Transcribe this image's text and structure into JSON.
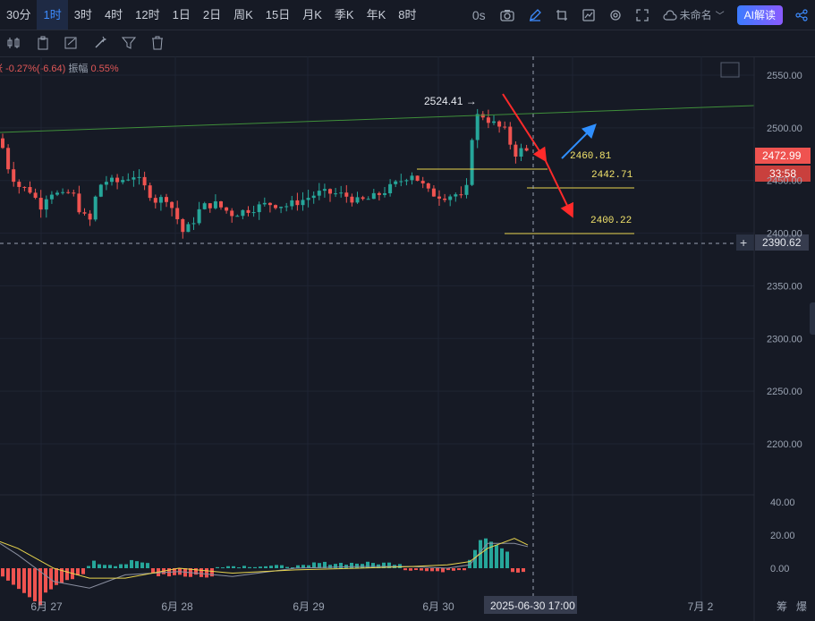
{
  "timeframes": [
    {
      "label": "30分",
      "active": false
    },
    {
      "label": "1时",
      "active": true
    },
    {
      "label": "3时",
      "active": false
    },
    {
      "label": "4时",
      "active": false
    },
    {
      "label": "12时",
      "active": false
    },
    {
      "label": "1日",
      "active": false
    },
    {
      "label": "2日",
      "active": false
    },
    {
      "label": "周K",
      "active": false
    },
    {
      "label": "15日",
      "active": false
    },
    {
      "label": "月K",
      "active": false
    },
    {
      "label": "季K",
      "active": false
    },
    {
      "label": "年K",
      "active": false
    },
    {
      "label": "8时",
      "active": false
    }
  ],
  "toolbar_right": {
    "interval_label": "0s",
    "layout_name": "未命名",
    "ai_label": "AI解读"
  },
  "stats": {
    "change": "-0.27%(-6.64)",
    "amplitude_label": "振幅",
    "amplitude": "0.55%",
    "prefix": "涨"
  },
  "price_axis": [
    "2550.00",
    "2500.00",
    "2450.00",
    "2400.00",
    "2350.00",
    "2300.00",
    "2250.00",
    "2200.00"
  ],
  "osc_axis": [
    "40.00",
    "20.00",
    "0.00"
  ],
  "date_axis": [
    "6月 27",
    "6月 28",
    "6月 29",
    "6月 30",
    "7月 2"
  ],
  "crosshair": {
    "time": "2025-06-30 17:00",
    "price": "2390.62"
  },
  "current_price": {
    "value": "2472.99",
    "countdown": "33:58"
  },
  "annotations": {
    "high": "2524.41",
    "level1": "2460.81",
    "level2": "2442.71",
    "level3": "2400.22"
  },
  "bottom_right": [
    "筹",
    "爆"
  ],
  "colors": {
    "up": "#26a69a",
    "down": "#ef5350",
    "background": "#161a25",
    "accent": "#3d8bfd"
  }
}
